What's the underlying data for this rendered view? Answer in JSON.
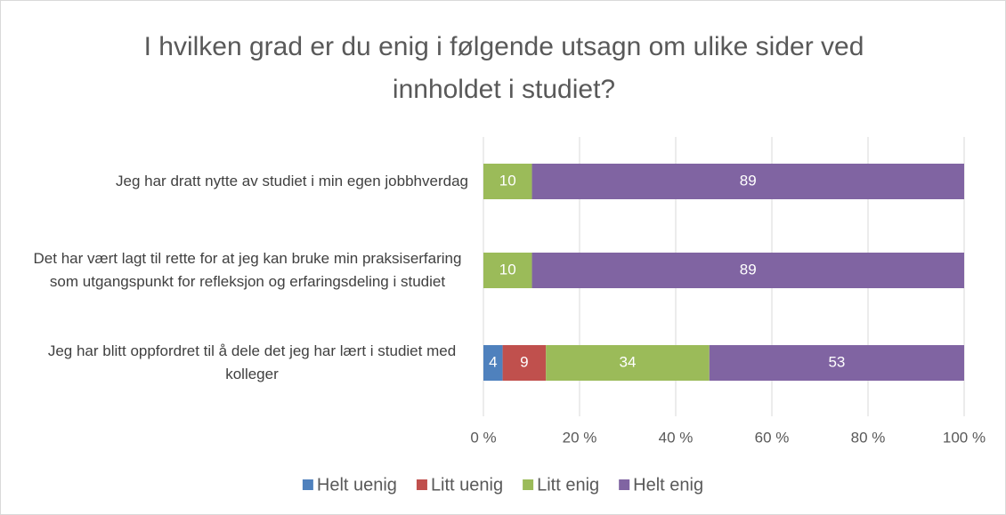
{
  "chart_data": {
    "type": "bar",
    "stacked_percent": true,
    "orientation": "horizontal",
    "title": "I hvilken grad er du enig i følgende utsagn om ulike sider ved innholdet i studiet?",
    "categories": [
      "Jeg har dratt nytte av studiet i min egen jobbhverdag",
      "Det har vært lagt til rette for at jeg kan bruke min praksiserfaring som utgangspunkt for refleksjon og erfaringsdeling i studiet",
      "Jeg har blitt oppfordret til å dele det jeg har lært i studiet med kolleger"
    ],
    "series": [
      {
        "name": "Helt uenig",
        "color": "#4f81bd",
        "values": [
          0,
          0,
          4
        ]
      },
      {
        "name": "Litt uenig",
        "color": "#c0504d",
        "values": [
          0,
          0,
          9
        ]
      },
      {
        "name": "Litt enig",
        "color": "#9bbb59",
        "values": [
          10,
          10,
          34
        ]
      },
      {
        "name": "Helt enig",
        "color": "#8064a2",
        "values": [
          89,
          89,
          53
        ]
      }
    ],
    "xlim": [
      0,
      100
    ],
    "xticks": [
      {
        "value": 0,
        "label": "0 %"
      },
      {
        "value": 20,
        "label": "20 %"
      },
      {
        "value": 40,
        "label": "40 %"
      },
      {
        "value": 60,
        "label": "60 %"
      },
      {
        "value": 80,
        "label": "80 %"
      },
      {
        "value": 100,
        "label": "100 %"
      }
    ],
    "grid": true,
    "legend": "bottom"
  }
}
